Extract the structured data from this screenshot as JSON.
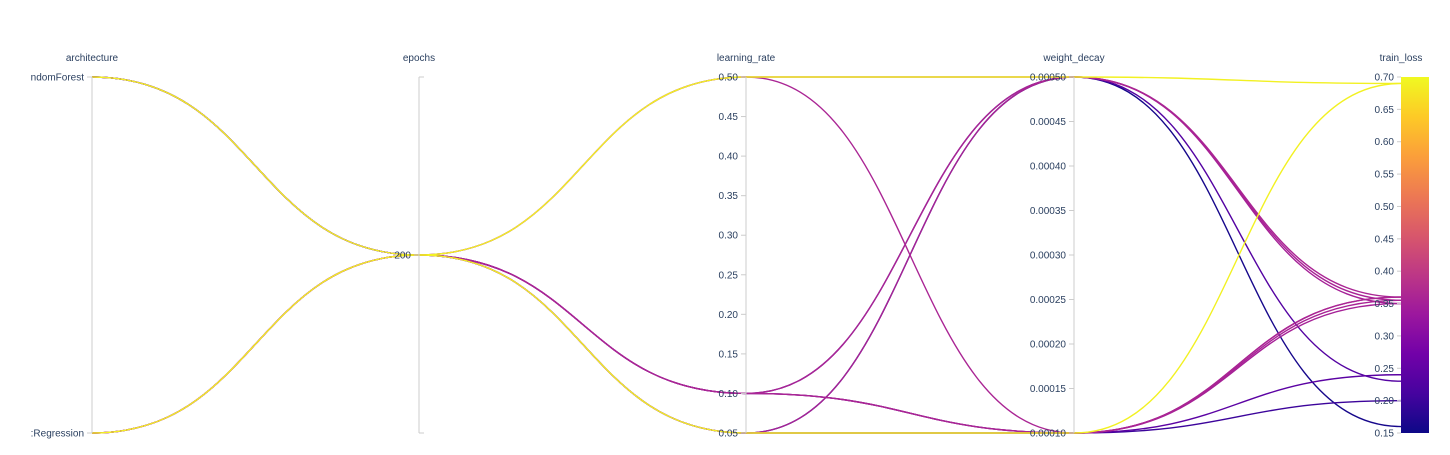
{
  "chart_data": {
    "type": "parallel_coordinates",
    "color_by": "train_loss",
    "colorscale": [
      "#0d0887",
      "#46039f",
      "#7201a8",
      "#9c179e",
      "#bd3786",
      "#d8576b",
      "#ed7953",
      "#fb9f3a",
      "#fdca26",
      "#f0f921"
    ],
    "colorbar": {
      "range": [
        0.15,
        0.7
      ],
      "ticks": [
        "0.15",
        "0.20",
        "0.25",
        "0.30",
        "0.35",
        "0.40",
        "0.45",
        "0.50",
        "0.55",
        "0.60",
        "0.65",
        "0.70"
      ]
    },
    "dimensions": [
      {
        "label": "architecture",
        "kind": "categorical",
        "categories": [
          "RandomForest",
          "LogisticRegression"
        ],
        "tick_text": [
          "ndomForest",
          ":Regression"
        ]
      },
      {
        "label": "epochs",
        "kind": "numeric",
        "range": [
          199,
          201
        ],
        "ticks": [
          200
        ],
        "tick_text": [
          "200"
        ]
      },
      {
        "label": "learning_rate",
        "kind": "numeric",
        "range": [
          0.05,
          0.5
        ],
        "ticks": [
          0.05,
          0.1,
          0.15,
          0.2,
          0.25,
          0.3,
          0.35,
          0.4,
          0.45,
          0.5
        ],
        "tick_text": [
          "0.05",
          "0.10",
          "0.15",
          "0.20",
          "0.25",
          "0.30",
          "0.35",
          "0.40",
          "0.45",
          "0.50"
        ]
      },
      {
        "label": "weight_decay",
        "kind": "numeric",
        "range": [
          0.0001,
          0.0005
        ],
        "ticks": [
          0.0001,
          0.00015,
          0.0002,
          0.00025,
          0.0003,
          0.00035,
          0.0004,
          0.00045,
          0.0005
        ],
        "tick_text": [
          "0.00010",
          "0.00015",
          "0.00020",
          "0.00025",
          "0.00030",
          "0.00035",
          "0.00040",
          "0.00045",
          "0.00050"
        ]
      },
      {
        "label": "train_loss",
        "kind": "numeric",
        "range": [
          0.15,
          0.7
        ],
        "ticks": [
          0.15,
          0.2,
          0.25,
          0.3,
          0.35,
          0.4,
          0.45,
          0.5,
          0.55,
          0.6,
          0.65,
          0.7
        ],
        "tick_text": [
          "0.15",
          "0.20",
          "0.25",
          "0.30",
          "0.35",
          "0.40",
          "0.45",
          "0.50",
          "0.55",
          "0.60",
          "0.65",
          "0.70"
        ]
      }
    ],
    "rows": [
      {
        "architecture": "RandomForest",
        "epochs": 200,
        "learning_rate": 0.5,
        "weight_decay": 0.0005,
        "train_loss": 0.69
      },
      {
        "architecture": "RandomForest",
        "epochs": 200,
        "learning_rate": 0.5,
        "weight_decay": 0.0001,
        "train_loss": 0.36
      },
      {
        "architecture": "RandomForest",
        "epochs": 200,
        "learning_rate": 0.1,
        "weight_decay": 0.0005,
        "train_loss": 0.23
      },
      {
        "architecture": "RandomForest",
        "epochs": 200,
        "learning_rate": 0.05,
        "weight_decay": 0.0005,
        "train_loss": 0.16
      },
      {
        "architecture": "RandomForest",
        "epochs": 200,
        "learning_rate": 0.1,
        "weight_decay": 0.0001,
        "train_loss": 0.2
      },
      {
        "architecture": "RandomForest",
        "epochs": 200,
        "learning_rate": 0.05,
        "weight_decay": 0.0001,
        "train_loss": 0.24
      },
      {
        "architecture": "LogisticRegression",
        "epochs": 200,
        "learning_rate": 0.05,
        "weight_decay": 0.0001,
        "train_loss": 0.69
      },
      {
        "architecture": "LogisticRegression",
        "epochs": 200,
        "learning_rate": 0.5,
        "weight_decay": 0.0005,
        "train_loss": 0.35
      },
      {
        "architecture": "LogisticRegression",
        "epochs": 200,
        "learning_rate": 0.1,
        "weight_decay": 0.0005,
        "train_loss": 0.36
      },
      {
        "architecture": "LogisticRegression",
        "epochs": 200,
        "learning_rate": 0.1,
        "weight_decay": 0.0001,
        "train_loss": 0.355
      },
      {
        "architecture": "LogisticRegression",
        "epochs": 200,
        "learning_rate": 0.05,
        "weight_decay": 0.0005,
        "train_loss": 0.355
      },
      {
        "architecture": "LogisticRegression",
        "epochs": 200,
        "learning_rate": 0.1,
        "weight_decay": 0.0001,
        "train_loss": 0.36
      },
      {
        "architecture": "LogisticRegression",
        "epochs": 200,
        "learning_rate": 0.05,
        "weight_decay": 0.0001,
        "train_loss": 0.35
      }
    ]
  }
}
